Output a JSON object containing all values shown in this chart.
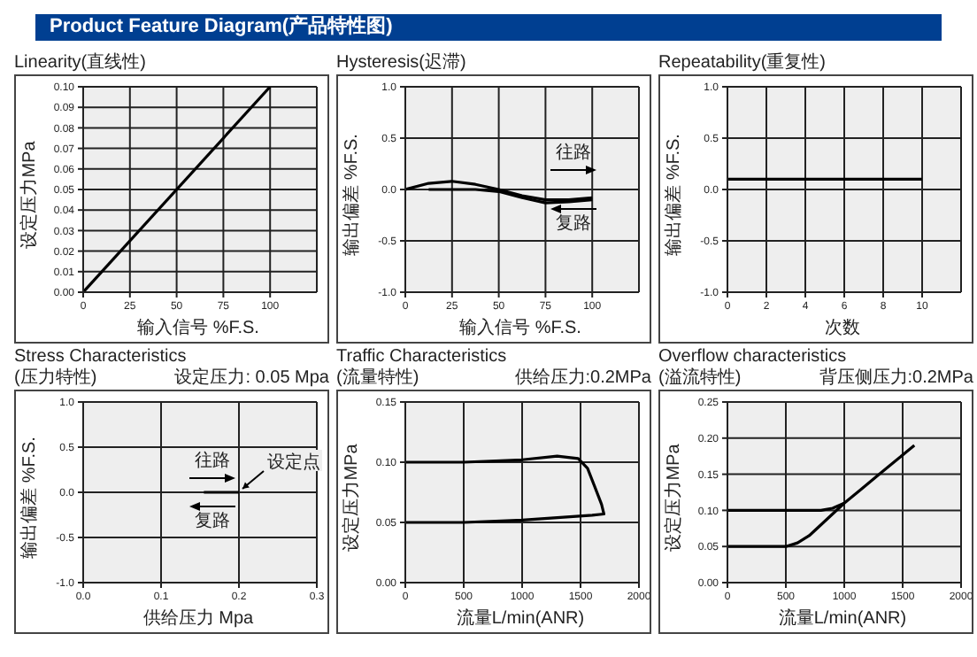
{
  "chart_data": [
    {
      "type": "line",
      "title": "Linearity(直线性)",
      "annotations": [
        "Product Feature Diagram(产品特性图)"
      ],
      "xlabel": "输入信号 %F.S.",
      "ylabel": "设定压力MPa",
      "xlim": [
        0,
        125
      ],
      "xticks": [
        0,
        25,
        50,
        75,
        100
      ],
      "ylim": [
        0,
        0.1
      ],
      "yticks": [
        {
          "value": 0,
          "label": "0.00"
        },
        {
          "value": 0.01,
          "label": "0.01"
        },
        {
          "value": 0.02,
          "label": "0.02"
        },
        {
          "value": 0.03,
          "label": "0.03"
        },
        {
          "value": 0.04,
          "label": "0.04"
        },
        {
          "value": 0.05,
          "label": "0.05"
        },
        {
          "value": 0.06,
          "label": "0.06"
        },
        {
          "value": 0.07,
          "label": "0.07"
        },
        {
          "value": 0.08,
          "label": "0.08"
        },
        {
          "value": 0.09,
          "label": "0.09"
        },
        {
          "value": 0.1,
          "label": "0.10"
        }
      ],
      "grid": true,
      "series": [
        {
          "color": "#000000",
          "x": [
            0,
            100
          ],
          "values": [
            0,
            0.1
          ]
        }
      ]
    },
    {
      "type": "line",
      "title": "Hysteresis(迟滞)",
      "xlabel": "输入信号 %F.S.",
      "ylabel": "输出偏差 %F.S.",
      "xlim": [
        0,
        125
      ],
      "xticks": [
        0,
        25,
        50,
        75,
        100
      ],
      "ylim": [
        -1,
        1
      ],
      "yticks": [
        {
          "value": -1,
          "label": "-1.0"
        },
        {
          "value": -0.5,
          "label": "-0.5"
        },
        {
          "value": 0,
          "label": "0.0"
        },
        {
          "value": 0.5,
          "label": "0.5"
        },
        {
          "value": 1,
          "label": "1.0"
        }
      ],
      "grid": true,
      "annotations": [
        "往路",
        "复路"
      ],
      "series": [
        {
          "color": "#000000",
          "x": [
            0,
            12.5,
            25,
            37.5,
            50,
            62.5,
            75,
            87.5,
            100
          ],
          "values": [
            0,
            0.06,
            0.08,
            0.05,
            0,
            -0.06,
            -0.1,
            -0.1,
            -0.08
          ]
        },
        {
          "color": "#000000",
          "x": [
            12.5,
            25,
            37.5,
            50,
            62.5,
            75,
            87.5,
            100
          ],
          "values": [
            0,
            0,
            0,
            -0.02,
            -0.08,
            -0.13,
            -0.12,
            -0.1
          ]
        }
      ]
    },
    {
      "type": "line",
      "title": "Repeatability(重复性)",
      "xlabel": "次数",
      "ylabel": "输出偏差 %F.S.",
      "xlim": [
        0,
        12
      ],
      "xticks": [
        0,
        2,
        4,
        6,
        8,
        10
      ],
      "ylim": [
        -1,
        1
      ],
      "yticks": [
        {
          "value": -1,
          "label": "-1.0"
        },
        {
          "value": -0.5,
          "label": "-0.5"
        },
        {
          "value": 0,
          "label": "0.0"
        },
        {
          "value": 0.5,
          "label": "0.5"
        },
        {
          "value": 1,
          "label": "1.0"
        }
      ],
      "grid": true,
      "series": [
        {
          "color": "#000000",
          "x": [
            0,
            10
          ],
          "values": [
            0.1,
            0.1
          ]
        }
      ]
    },
    {
      "type": "line",
      "title": "Stress Characteristics",
      "subtitle": "(压力特性)",
      "annotations": [
        "设定压力: 0.05 Mpa",
        "往路",
        "复路",
        {
          "text": "设定点",
          "x": 0.2,
          "y": 0
        }
      ],
      "xlabel": "供给压力 Mpa",
      "ylabel": "输出偏差 %F.S.",
      "xlim": [
        0,
        0.3
      ],
      "xticks": [
        {
          "value": 0,
          "label": "0.0"
        },
        {
          "value": 0.1,
          "label": "0.1"
        },
        {
          "value": 0.2,
          "label": "0.2"
        },
        {
          "value": 0.3,
          "label": "0.3"
        }
      ],
      "ylim": [
        -1,
        1
      ],
      "yticks": [
        {
          "value": -1,
          "label": "-1.0"
        },
        {
          "value": -0.5,
          "label": "-0.5"
        },
        {
          "value": 0,
          "label": "0.0"
        },
        {
          "value": 0.5,
          "label": "0.5"
        },
        {
          "value": 1,
          "label": "1.0"
        }
      ],
      "grid": true,
      "series": [
        {
          "color": "#000000",
          "x": [
            0.155,
            0.2
          ],
          "values": [
            0,
            0
          ]
        }
      ]
    },
    {
      "type": "line",
      "title": "Traffic Characteristics",
      "subtitle": "(流量特性)",
      "annotations": [
        "供给压力:0.2MPa"
      ],
      "xlabel": "流量L/min(ANR)",
      "ylabel": "设定压力MPa",
      "xlim": [
        0,
        2000
      ],
      "xticks": [
        0,
        500,
        1000,
        1500,
        2000
      ],
      "ylim": [
        0,
        0.15
      ],
      "yticks": [
        {
          "value": 0,
          "label": "0.00"
        },
        {
          "value": 0.05,
          "label": "0.05"
        },
        {
          "value": 0.1,
          "label": "0.10"
        },
        {
          "value": 0.15,
          "label": "0.15"
        }
      ],
      "grid": true,
      "series": [
        {
          "color": "#000000",
          "x": [
            0,
            500,
            1000,
            1300,
            1480,
            1560,
            1620,
            1680,
            1700,
            1600,
            1000,
            500,
            0
          ],
          "values": [
            0.1,
            0.1,
            0.102,
            0.105,
            0.103,
            0.095,
            0.08,
            0.065,
            0.057,
            0.056,
            0.052,
            0.05,
            0.05
          ]
        }
      ]
    },
    {
      "type": "line",
      "title": "Overflow characteristics",
      "subtitle": "(溢流特性)",
      "annotations": [
        "背压侧压力:0.2MPa"
      ],
      "xlabel": "流量L/min(ANR)",
      "ylabel": "设定压力MPa",
      "xlim": [
        0,
        2000
      ],
      "xticks": [
        0,
        500,
        1000,
        1500,
        2000
      ],
      "ylim": [
        0,
        0.25
      ],
      "yticks": [
        {
          "value": 0,
          "label": "0.00"
        },
        {
          "value": 0.05,
          "label": "0.05"
        },
        {
          "value": 0.1,
          "label": "0.10"
        },
        {
          "value": 0.15,
          "label": "0.15"
        },
        {
          "value": 0.2,
          "label": "0.20"
        },
        {
          "value": 0.25,
          "label": "0.25"
        }
      ],
      "grid": true,
      "series": [
        {
          "color": "#000000",
          "x": [
            0,
            400,
            800,
            900,
            1000,
            1150,
            1300,
            1450,
            1600
          ],
          "values": [
            0.1,
            0.1,
            0.1,
            0.103,
            0.11,
            0.13,
            0.15,
            0.17,
            0.19
          ]
        },
        {
          "color": "#000000",
          "x": [
            0,
            300,
            500,
            600,
            700,
            800,
            900,
            1000
          ],
          "values": [
            0.05,
            0.05,
            0.05,
            0.055,
            0.065,
            0.08,
            0.095,
            0.11
          ]
        }
      ]
    }
  ]
}
